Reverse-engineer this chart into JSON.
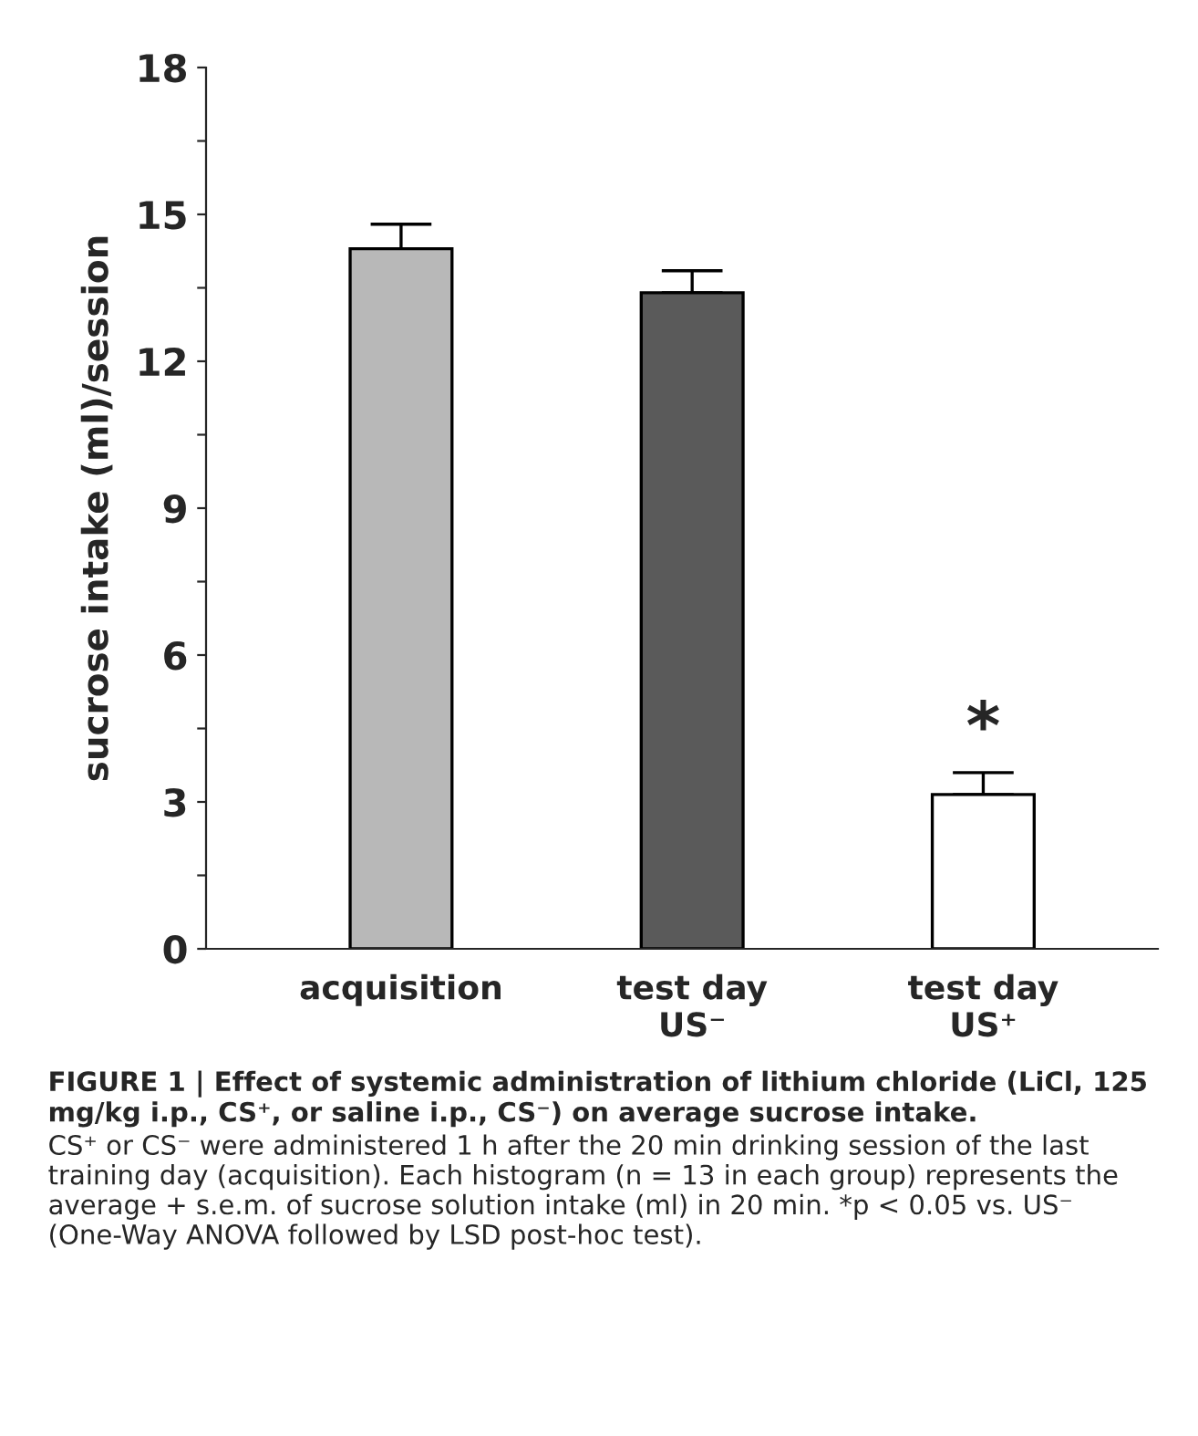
{
  "chart_data": {
    "type": "bar",
    "title": "FIGURE 1 | Effect of systemic administration of lithium chloride (LiCl, 125 mg/kg i.p., CS⁺, or saline i.p., CS⁻) on average sucrose intake.",
    "ylabel": "sucrose intake (ml)/session",
    "categories": [
      "acquisition",
      "test day\nUS⁻",
      "test day\nUS⁺"
    ],
    "values": [
      14.3,
      13.4,
      3.15
    ],
    "errors": [
      [
        14.3,
        14.8
      ],
      [
        13.4,
        13.85
      ],
      [
        3.15,
        3.6
      ]
    ],
    "colors": [
      "#b8b8b8",
      "#5a5a5a",
      "#ffffff"
    ],
    "ylim": [
      0,
      18
    ],
    "yticks": [
      0,
      {
        "value": 1.5,
        "label": null
      },
      3,
      {
        "value": 4.5,
        "label": null
      },
      6,
      {
        "value": 7.5,
        "label": null
      },
      9,
      {
        "value": 10.5,
        "label": null
      },
      12,
      {
        "value": 13.5,
        "label": null
      },
      15,
      {
        "value": 16.5,
        "label": null
      },
      18
    ],
    "grid": false,
    "annotations": [
      "*",
      "CS⁺ or CS⁻ were administered 1 h after the 20 min drinking session of the last training day (acquisition). Each histogram (n = 13 in each group) represents the average + s.e.m. of sucrose solution intake (ml) in 20 min. *p < 0.05 vs. US⁻ (One-Way ANOVA followed by LSD post-hoc test)."
    ]
  }
}
